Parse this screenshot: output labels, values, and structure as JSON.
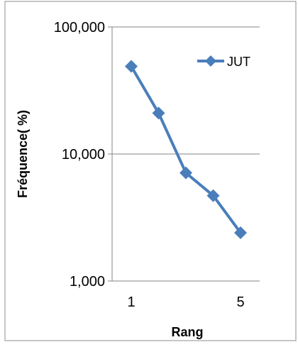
{
  "chart_data": {
    "type": "line",
    "title": "",
    "xlabel": "Rang",
    "ylabel": "Fréquence( %)",
    "y_scale": "log",
    "ylim": [
      1,
      100
    ],
    "y_ticks": [
      1,
      10,
      100
    ],
    "y_tick_labels": [
      "1,000",
      "10,000",
      "100,000"
    ],
    "xlim": [
      1,
      5
    ],
    "x_ticks": [
      1,
      5
    ],
    "x_tick_labels": [
      "1",
      "5"
    ],
    "grid": "horizontal major",
    "legend_position": "top-right",
    "series": [
      {
        "name": "JUT",
        "color": "#4a7ebb",
        "marker": "diamond",
        "x": [
          1,
          2,
          3,
          4,
          5
        ],
        "y": [
          49,
          21,
          7.1,
          4.7,
          2.4
        ]
      }
    ]
  }
}
